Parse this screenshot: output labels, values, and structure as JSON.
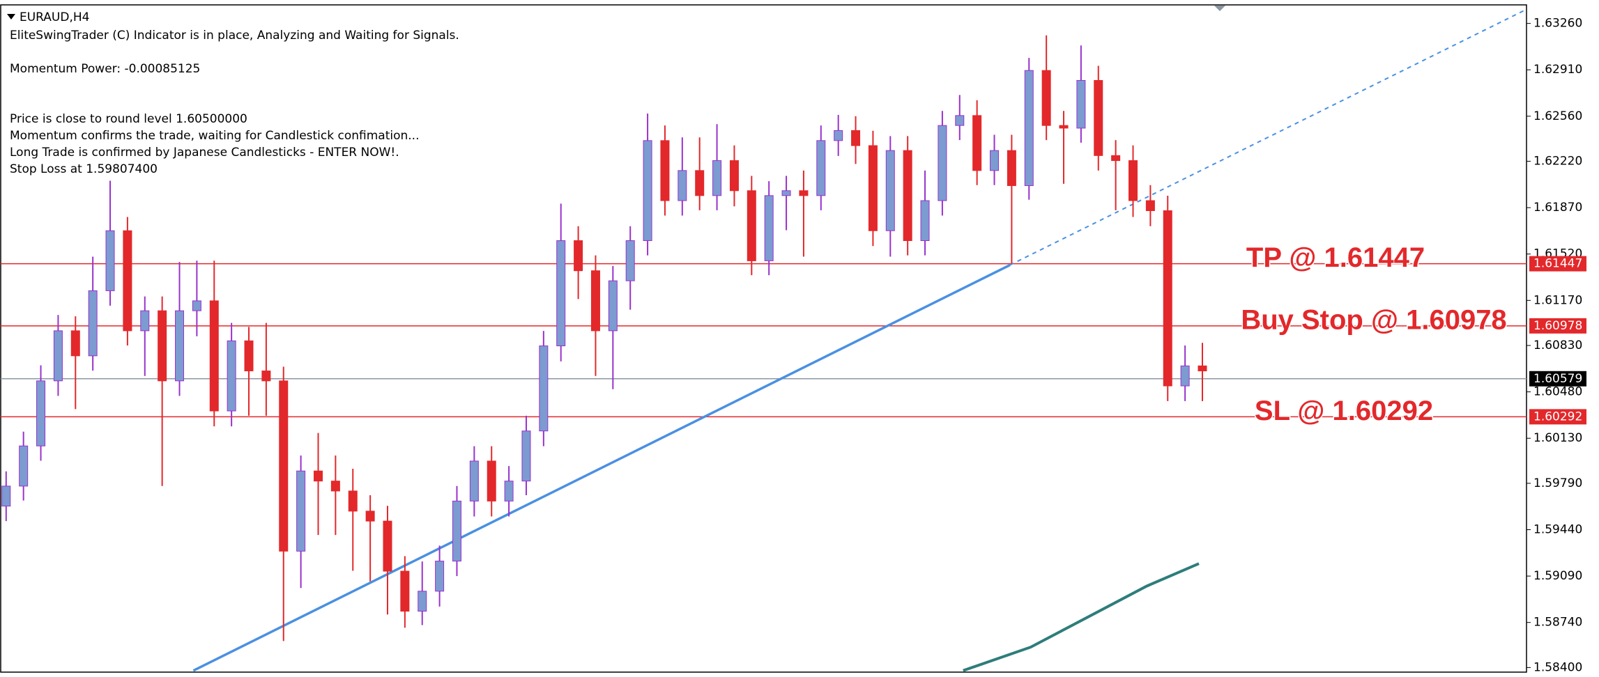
{
  "chart_data": {
    "type": "candlestick",
    "title": "EURAUD,H4",
    "notes": [
      "EliteSwingTrader (C) Indicator is in place, Analyzing and Waiting for Signals.",
      "Momentum Power: -0.00085125",
      "Price is close to round level 1.60500000",
      "Momentum confirms the trade, waiting for Candlestick confimation...",
      "Long Trade is confirmed by Japanese Candlesticks - ENTER NOW!.",
      "Stop Loss at 1.59807400"
    ],
    "up_color": "#7b9bd1",
    "up_wick_color": "#9932cc",
    "down_color": "#e3282b",
    "open": [
      1.59618,
      1.59769,
      1.60072,
      1.60563,
      1.60941,
      1.60752,
      1.61243,
      1.61696,
      1.60941,
      1.61092,
      1.60563,
      1.61092,
      1.61167,
      1.60336,
      1.60865,
      1.60638,
      1.60563,
      1.59278,
      1.59883,
      1.59807,
      1.59732,
      1.5958,
      1.59505,
      1.59127,
      1.58825,
      1.58976,
      1.59203,
      1.59656,
      1.59958,
      1.59656,
      1.59807,
      1.60185,
      1.60827,
      1.61621,
      1.61394,
      1.60941,
      1.61318,
      1.61621,
      1.62376,
      1.61923,
      1.6215,
      1.61961,
      1.62225,
      1.61998,
      1.61469,
      1.61961,
      1.61998,
      1.61961,
      1.62376,
      1.62452,
      1.62338,
      1.61696,
      1.62301,
      1.61621,
      1.61923,
      1.6249,
      1.62565,
      1.6215,
      1.62301,
      1.62036,
      1.62905,
      1.6249,
      1.6247,
      1.6283,
      1.62263,
      1.62225,
      1.61923,
      1.61847,
      1.60525,
      1.60676
    ],
    "high": [
      1.5988,
      1.6018,
      1.6068,
      1.6106,
      1.6105,
      1.615,
      1.62073,
      1.618,
      1.612,
      1.612,
      1.6146,
      1.6147,
      1.6147,
      1.61,
      1.6097,
      1.61,
      1.6067,
      1.6,
      1.6017,
      1.6,
      1.599,
      1.597,
      1.5962,
      1.5924,
      1.592,
      1.5932,
      1.5977,
      1.6007,
      1.6007,
      1.5992,
      1.603,
      1.6094,
      1.619,
      1.6173,
      1.6151,
      1.6143,
      1.6173,
      1.6258,
      1.6249,
      1.624,
      1.624,
      1.625,
      1.6234,
      1.6211,
      1.6207,
      1.6211,
      1.6215,
      1.6249,
      1.6257,
      1.6256,
      1.6245,
      1.6241,
      1.6241,
      1.6215,
      1.626,
      1.6272,
      1.6268,
      1.6242,
      1.6242,
      1.63,
      1.6317,
      1.626,
      1.63094,
      1.6294,
      1.6238,
      1.6234,
      1.6204,
      1.6196,
      1.6083,
      1.6085
    ],
    "low": [
      1.59505,
      1.5966,
      1.5996,
      1.6045,
      1.6035,
      1.6064,
      1.6113,
      1.6083,
      1.606,
      1.5977,
      1.6045,
      1.609,
      1.6022,
      1.6022,
      1.603,
      1.603,
      1.586,
      1.59,
      1.594,
      1.594,
      1.5913,
      1.5905,
      1.588,
      1.587,
      1.5872,
      1.5886,
      1.5909,
      1.5954,
      1.5954,
      1.5954,
      1.597,
      1.6007,
      1.6071,
      1.6118,
      1.606,
      1.605,
      1.611,
      1.6151,
      1.6181,
      1.6181,
      1.6185,
      1.6185,
      1.6188,
      1.6136,
      1.6136,
      1.617,
      1.615,
      1.6185,
      1.6226,
      1.622,
      1.6158,
      1.615,
      1.6151,
      1.6151,
      1.6181,
      1.6238,
      1.6204,
      1.6204,
      1.61447,
      1.6193,
      1.6238,
      1.6205,
      1.6236,
      1.6215,
      1.6185,
      1.618,
      1.6173,
      1.6041,
      1.6041,
      1.6041
    ],
    "close": [
      1.59769,
      1.60072,
      1.60563,
      1.60941,
      1.60752,
      1.61243,
      1.61696,
      1.60941,
      1.61092,
      1.60563,
      1.61092,
      1.61167,
      1.60336,
      1.60865,
      1.60638,
      1.60563,
      1.59278,
      1.59883,
      1.59807,
      1.59732,
      1.5958,
      1.59505,
      1.59127,
      1.58825,
      1.58976,
      1.59203,
      1.59656,
      1.59958,
      1.59656,
      1.59807,
      1.60185,
      1.60827,
      1.61621,
      1.61394,
      1.60941,
      1.61318,
      1.61621,
      1.62376,
      1.61923,
      1.6215,
      1.61961,
      1.62225,
      1.61998,
      1.61469,
      1.61961,
      1.61998,
      1.61961,
      1.62376,
      1.62452,
      1.62338,
      1.61696,
      1.62301,
      1.61621,
      1.61923,
      1.6249,
      1.62565,
      1.6215,
      1.62301,
      1.62036,
      1.62905,
      1.6249,
      1.6247,
      1.6283,
      1.62263,
      1.62225,
      1.61923,
      1.61847,
      1.60525,
      1.60676,
      1.60638
    ],
    "ylim": [
      1.5836,
      1.634
    ],
    "yticks": [
      {
        "value": 1.6326,
        "label": "1.63260"
      },
      {
        "value": 1.6291,
        "label": "1.62910"
      },
      {
        "value": 1.6256,
        "label": "1.62560"
      },
      {
        "value": 1.6222,
        "label": "1.62220"
      },
      {
        "value": 1.6187,
        "label": "1.61870"
      },
      {
        "value": 1.6152,
        "label": "1.61520"
      },
      {
        "value": 1.6117,
        "label": "1.61170"
      },
      {
        "value": 1.6083,
        "label": "1.60830"
      },
      {
        "value": 1.6048,
        "label": "1.60480"
      },
      {
        "value": 1.6013,
        "label": "1.60130"
      },
      {
        "value": 1.5979,
        "label": "1.59790"
      },
      {
        "value": 1.5944,
        "label": "1.59440"
      },
      {
        "value": 1.5909,
        "label": "1.59090"
      },
      {
        "value": 1.5874,
        "label": "1.58740"
      },
      {
        "value": 1.584,
        "label": "1.58400"
      }
    ],
    "levels": [
      {
        "label": "TP @ 1.61447",
        "value": 1.61447,
        "color": "#e3282b"
      },
      {
        "label": "Buy Stop @ 1.60978",
        "value": 1.60978,
        "color": "#e3282b"
      },
      {
        "label": "SL @ 1.60292",
        "value": 1.60292,
        "color": "#e3282b"
      }
    ],
    "current_price": {
      "value": 1.60579,
      "color": "#8c96a0"
    },
    "trendline": {
      "color": "#4a90e2",
      "x": [
        10.8,
        57.9,
        87.6
      ],
      "y": [
        1.58377,
        1.61437,
        1.6336
      ]
    },
    "ma_line": {
      "color": "#2e7d7a",
      "x": [
        55.2,
        59.1,
        65.8,
        68.8
      ],
      "y": [
        1.58377,
        1.58554,
        1.59015,
        1.59184
      ]
    }
  }
}
